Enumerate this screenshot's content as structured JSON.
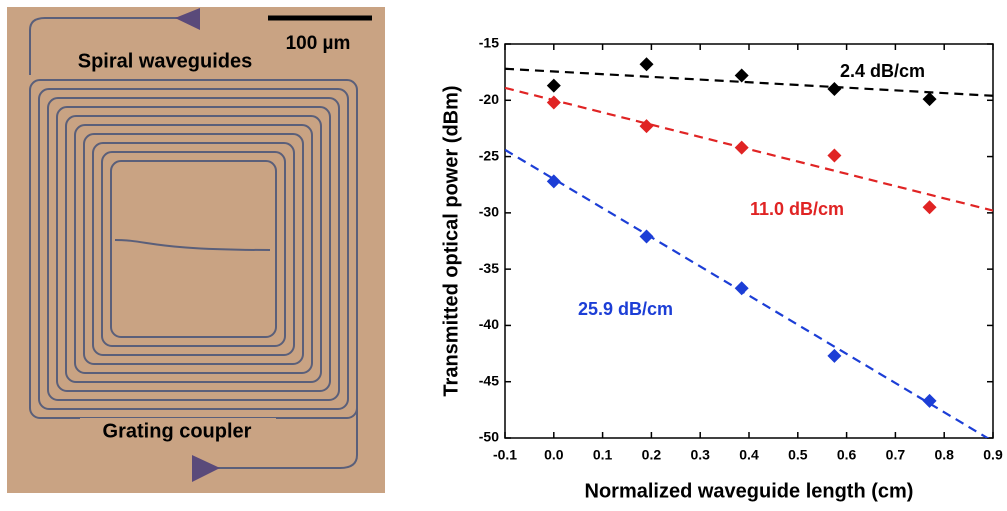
{
  "micrograph": {
    "scale_label": "100 µm",
    "top_label": "Spiral waveguides",
    "bottom_label": "Grating coupler"
  },
  "chart_data": {
    "type": "scatter",
    "x_label": "Normalized waveguide length (cm)",
    "y_label": "Transmitted optical power (dBm)",
    "xlim": [
      -0.1,
      0.9
    ],
    "xticks": [
      -0.1,
      {
        "value": 0,
        "label": "0.0"
      },
      0.1,
      0.2,
      0.3,
      0.4,
      0.5,
      0.6,
      0.7,
      0.8,
      0.9
    ],
    "ylim": [
      -50,
      -15
    ],
    "yticks": [
      -50,
      -45,
      -40,
      -35,
      -30,
      -25,
      -20,
      -15
    ],
    "x": [
      0,
      0.19,
      0.385,
      0.575,
      0.77
    ],
    "series": [
      {
        "annotation": "2.4 dB/cm",
        "color": "#000000",
        "values": [
          -18.7,
          -16.8,
          -17.8,
          -19.0,
          -19.9
        ],
        "fit_x": [
          -0.1,
          0.9
        ],
        "fit_values": [
          -17.2,
          -19.6
        ]
      },
      {
        "annotation": "11.0 dB/cm",
        "color": "#e02424",
        "values": [
          -20.2,
          -22.3,
          -24.2,
          -24.9,
          -29.5
        ],
        "fit_x": [
          -0.1,
          0.9
        ],
        "fit_values": [
          -18.9,
          -29.8
        ]
      },
      {
        "annotation": "25.9 dB/cm",
        "color": "#1c3ed6",
        "values": [
          -27.2,
          -32.1,
          -36.7,
          -42.7,
          -46.7
        ],
        "fit_x": [
          -0.1,
          0.9
        ],
        "fit_values": [
          -24.4,
          -50.3
        ]
      }
    ]
  }
}
